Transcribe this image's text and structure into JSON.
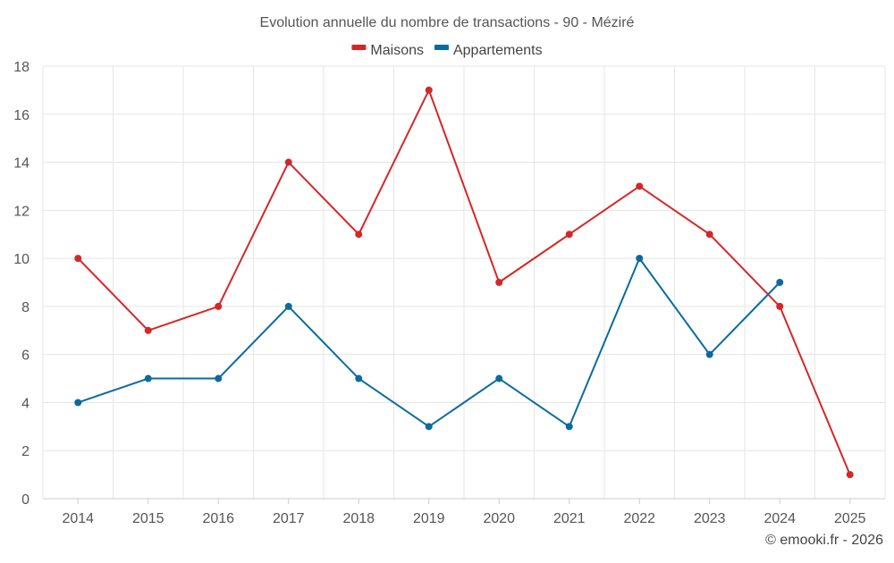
{
  "chart_data": {
    "type": "line",
    "title": "Evolution annuelle du nombre de transactions - 90 - Méziré",
    "categories": [
      "2014",
      "2015",
      "2016",
      "2017",
      "2018",
      "2019",
      "2020",
      "2021",
      "2022",
      "2023",
      "2024",
      "2025"
    ],
    "series": [
      {
        "name": "Maisons",
        "color": "#d62728",
        "values": [
          10,
          7,
          8,
          14,
          11,
          17,
          9,
          11,
          13,
          11,
          8,
          1
        ]
      },
      {
        "name": "Appartements",
        "color": "#0b6b9e",
        "values": [
          4,
          5,
          5,
          8,
          5,
          3,
          5,
          3,
          10,
          6,
          9,
          null
        ]
      }
    ],
    "y_ticks": [
      "0",
      "2",
      "4",
      "6",
      "8",
      "10",
      "12",
      "14",
      "16",
      "18"
    ],
    "ylim": [
      0,
      18
    ],
    "xlabel": "",
    "ylabel": "",
    "grid": true,
    "legend_position": "top-center"
  },
  "credit": "© emooki.fr - 2026"
}
